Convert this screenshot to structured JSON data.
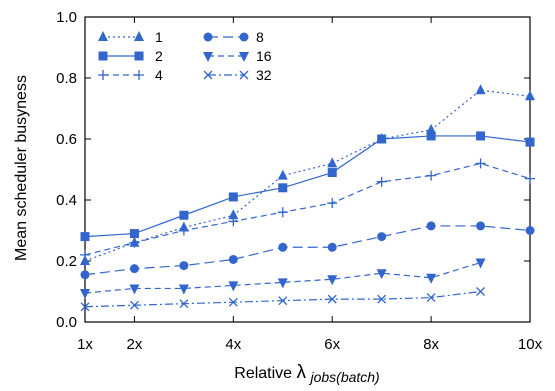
{
  "chart_data": {
    "type": "line",
    "xlabel_prefix": "Relative ",
    "xlabel_lambda": "λ",
    "xlabel_sub": "jobs(batch)",
    "ylabel": "Mean scheduler busyness",
    "xlim": [
      1,
      10
    ],
    "ylim": [
      0,
      1
    ],
    "x_ticks": [
      {
        "value": 1,
        "label": "1x"
      },
      {
        "value": 2,
        "label": "2x"
      },
      {
        "value": 4,
        "label": "4x"
      },
      {
        "value": 6,
        "label": "6x"
      },
      {
        "value": 8,
        "label": "8x"
      },
      {
        "value": 10,
        "label": "10x"
      }
    ],
    "y_ticks": [
      {
        "value": 0,
        "label": "0.0"
      },
      {
        "value": 0.2,
        "label": "0.2"
      },
      {
        "value": 0.4,
        "label": "0.4"
      },
      {
        "value": 0.6,
        "label": "0.6"
      },
      {
        "value": 0.8,
        "label": "0.8"
      },
      {
        "value": 1.0,
        "label": "1.0"
      }
    ],
    "grid": false,
    "legend_position": "top-left",
    "color": "#3366cc",
    "series": [
      {
        "name": "1",
        "marker": "triangle-up",
        "dash": "dotted",
        "x": [
          1,
          2,
          3,
          4,
          5,
          6,
          7,
          8,
          9,
          10
        ],
        "y": [
          0.2,
          0.26,
          0.31,
          0.35,
          0.48,
          0.52,
          0.6,
          0.63,
          0.76,
          0.74
        ]
      },
      {
        "name": "2",
        "marker": "square",
        "dash": "solid",
        "x": [
          1,
          2,
          3,
          4,
          5,
          6,
          7,
          8,
          9,
          10
        ],
        "y": [
          0.28,
          0.29,
          0.35,
          0.41,
          0.44,
          0.49,
          0.6,
          0.61,
          0.61,
          0.59
        ]
      },
      {
        "name": "4",
        "marker": "plus",
        "dash": "dashed",
        "x": [
          1,
          2,
          3,
          4,
          5,
          6,
          7,
          8,
          9,
          10
        ],
        "y": [
          0.22,
          0.26,
          0.3,
          0.33,
          0.36,
          0.39,
          0.46,
          0.48,
          0.52,
          0.47
        ]
      },
      {
        "name": "8",
        "marker": "circle",
        "dash": "longdash",
        "x": [
          1,
          2,
          3,
          4,
          5,
          6,
          7,
          8,
          9,
          10
        ],
        "y": [
          0.155,
          0.175,
          0.185,
          0.205,
          0.245,
          0.245,
          0.28,
          0.315,
          0.315,
          0.3
        ]
      },
      {
        "name": "16",
        "marker": "triangle-down",
        "dash": "dashed",
        "x": [
          1,
          2,
          3,
          4,
          5,
          6,
          7,
          8,
          9
        ],
        "y": [
          0.095,
          0.11,
          0.11,
          0.12,
          0.13,
          0.14,
          0.16,
          0.145,
          0.195
        ]
      },
      {
        "name": "32",
        "marker": "cross",
        "dash": "dashdot",
        "x": [
          1,
          2,
          3,
          4,
          5,
          6,
          7,
          8,
          9
        ],
        "y": [
          0.05,
          0.055,
          0.06,
          0.065,
          0.07,
          0.075,
          0.075,
          0.08,
          0.1
        ]
      }
    ]
  }
}
